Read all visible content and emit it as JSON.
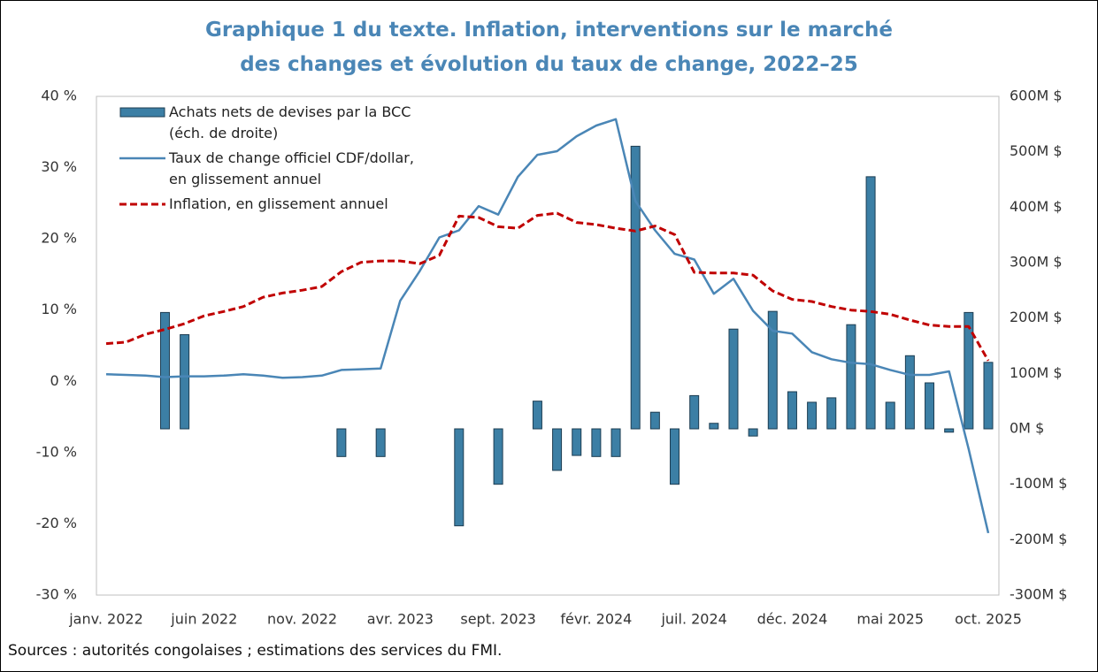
{
  "chart_data": {
    "type": "bar-line",
    "title": "Graphique 1 du texte. Inflation, interventions sur le marché\ndes changes et évolution du taux de change, 2022–25",
    "categories": [
      "janv. 2022",
      null,
      null,
      null,
      null,
      "juin 2022",
      null,
      null,
      null,
      null,
      "nov. 2022",
      null,
      null,
      null,
      null,
      "avr. 2023",
      null,
      null,
      null,
      null,
      "sept. 2023",
      null,
      null,
      null,
      null,
      "févr. 2024",
      null,
      null,
      null,
      null,
      "juil. 2024",
      null,
      null,
      null,
      null,
      "déc. 2024",
      null,
      null,
      null,
      null,
      "mai 2025",
      null,
      null,
      null,
      null,
      "oct. 2025"
    ],
    "series": [
      {
        "name": "Achats nets de devises par la BCC\n(éch. de droite)",
        "type": "bar",
        "axis": "y2",
        "color": "#3c7fa5",
        "values": [
          null,
          null,
          null,
          210,
          170,
          null,
          null,
          null,
          null,
          null,
          null,
          null,
          -50,
          null,
          -50,
          null,
          null,
          null,
          -175,
          null,
          -100,
          null,
          50,
          -75,
          -48,
          -50,
          -50,
          510,
          30,
          -100,
          60,
          10,
          180,
          -13,
          212,
          67,
          48,
          56,
          188,
          455,
          48,
          132,
          83,
          -6,
          210,
          120
        ]
      },
      {
        "name": "Taux de change officiel CDF/dollar,\nen glissement annuel",
        "type": "line",
        "color": "#4a86b6",
        "values": [
          1.0,
          0.9,
          0.8,
          0.6,
          0.7,
          0.7,
          0.8,
          1.0,
          0.8,
          0.5,
          0.6,
          0.8,
          1.6,
          1.7,
          1.8,
          11.3,
          15.5,
          20.2,
          21.2,
          24.6,
          23.4,
          28.7,
          31.8,
          32.3,
          34.4,
          35.9,
          36.8,
          25.3,
          21.2,
          17.9,
          17.1,
          12.3,
          14.4,
          9.9,
          7.1,
          6.7,
          4.1,
          3.1,
          2.6,
          2.4,
          1.6,
          0.9,
          0.9,
          1.4,
          -9.5,
          -21.3
        ]
      },
      {
        "name": "Inflation, en glissement annuel",
        "type": "line",
        "dashed": true,
        "color": "#c00000",
        "values": [
          5.3,
          5.5,
          6.6,
          7.3,
          8.1,
          9.2,
          9.8,
          10.5,
          11.8,
          12.4,
          12.8,
          13.3,
          15.4,
          16.7,
          16.9,
          16.9,
          16.5,
          17.7,
          23.2,
          23.0,
          21.7,
          21.5,
          23.3,
          23.6,
          22.3,
          22.0,
          21.5,
          21.1,
          21.8,
          20.6,
          15.3,
          15.2,
          15.2,
          14.9,
          12.7,
          11.5,
          11.2,
          10.5,
          10.0,
          9.8,
          9.4,
          8.6,
          7.9,
          7.7,
          7.7,
          2.9
        ]
      }
    ],
    "ylim": [
      -30,
      40
    ],
    "yticks": [
      {
        "value": -30,
        "label": "-30 %"
      },
      {
        "value": -20,
        "label": "-20 %"
      },
      {
        "value": -10,
        "label": "-10 %"
      },
      {
        "value": 0,
        "label": "0 %"
      },
      {
        "value": 10,
        "label": "10 %"
      },
      {
        "value": 20,
        "label": "20 %"
      },
      {
        "value": 30,
        "label": "30 %"
      },
      {
        "value": 40,
        "label": "40 %"
      }
    ],
    "y2lim": [
      -300,
      600
    ],
    "y2ticks": [
      {
        "value": -300,
        "label": "-300M $"
      },
      {
        "value": -200,
        "label": "-200M $"
      },
      {
        "value": -100,
        "label": "-100M $"
      },
      {
        "value": 0,
        "label": "0M $"
      },
      {
        "value": 100,
        "label": "100M $"
      },
      {
        "value": 200,
        "label": "200M $"
      },
      {
        "value": 300,
        "label": "300M $"
      },
      {
        "value": 400,
        "label": "400M $"
      },
      {
        "value": 500,
        "label": "500M $"
      },
      {
        "value": 600,
        "label": "600M $"
      }
    ],
    "grid": false,
    "legend": "top-left",
    "source": "Sources : autorités congolaises ; estimations des services du FMI."
  }
}
